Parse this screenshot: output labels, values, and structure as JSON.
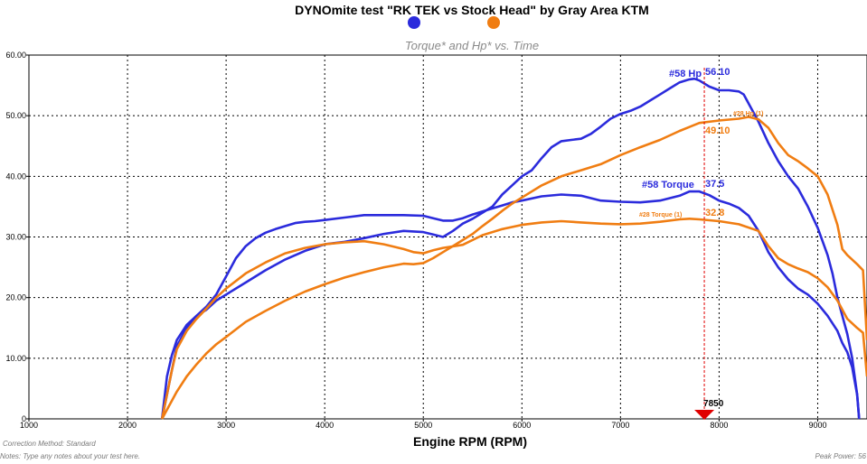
{
  "chart_data": {
    "type": "line",
    "title": "DYNOmite test \"RK TEK vs Stock Head\" by Gray Area KTM",
    "subtitle": "Torque* and Hp* vs. Time",
    "xlabel": "Engine RPM (RPM)",
    "ylabel": "",
    "xlim": [
      1000,
      9500
    ],
    "ylim": [
      0,
      60
    ],
    "x_ticks": [
      1000,
      2000,
      3000,
      4000,
      5000,
      6000,
      7000,
      8000,
      9000
    ],
    "y_ticks": [
      "0",
      "10.00",
      "20.00",
      "30.00",
      "40.00",
      "50.00",
      "60.00"
    ],
    "grid": true,
    "legend_colors": [
      "#2b2bdc",
      "#f07d12"
    ],
    "series": [
      {
        "name": "#58 Hp",
        "color": "#2b2bdc",
        "points": [
          [
            2350,
            0
          ],
          [
            2400,
            7
          ],
          [
            2450,
            10.5
          ],
          [
            2500,
            13
          ],
          [
            2600,
            15.5
          ],
          [
            2700,
            17
          ],
          [
            2800,
            18
          ],
          [
            2900,
            19.5
          ],
          [
            3000,
            20.5
          ],
          [
            3200,
            22.5
          ],
          [
            3400,
            24.5
          ],
          [
            3600,
            26.3
          ],
          [
            3800,
            27.7
          ],
          [
            4000,
            28.8
          ],
          [
            4200,
            29.2
          ],
          [
            4400,
            29.8
          ],
          [
            4600,
            30.5
          ],
          [
            4800,
            31
          ],
          [
            5000,
            30.8
          ],
          [
            5100,
            30.4
          ],
          [
            5200,
            30
          ],
          [
            5300,
            31
          ],
          [
            5400,
            32.2
          ],
          [
            5500,
            33
          ],
          [
            5600,
            34
          ],
          [
            5700,
            35
          ],
          [
            5800,
            37
          ],
          [
            5900,
            38.5
          ],
          [
            6000,
            40
          ],
          [
            6100,
            41
          ],
          [
            6200,
            43
          ],
          [
            6300,
            44.8
          ],
          [
            6400,
            45.8
          ],
          [
            6500,
            46
          ],
          [
            6600,
            46.2
          ],
          [
            6700,
            47
          ],
          [
            6800,
            48.2
          ],
          [
            6900,
            49.5
          ],
          [
            7000,
            50.3
          ],
          [
            7100,
            50.8
          ],
          [
            7200,
            51.5
          ],
          [
            7300,
            52.5
          ],
          [
            7400,
            53.5
          ],
          [
            7500,
            54.5
          ],
          [
            7600,
            55.5
          ],
          [
            7700,
            56
          ],
          [
            7750,
            56.1
          ],
          [
            7800,
            55.8
          ],
          [
            7900,
            54.8
          ],
          [
            8000,
            54.2
          ],
          [
            8100,
            54.2
          ],
          [
            8200,
            54
          ],
          [
            8250,
            53.5
          ],
          [
            8300,
            52
          ],
          [
            8400,
            49
          ],
          [
            8500,
            45.5
          ],
          [
            8600,
            42.5
          ],
          [
            8700,
            40
          ],
          [
            8800,
            38
          ],
          [
            8900,
            35
          ],
          [
            9000,
            31.5
          ],
          [
            9100,
            27
          ],
          [
            9150,
            24
          ],
          [
            9200,
            20
          ],
          [
            9250,
            17
          ],
          [
            9300,
            14
          ],
          [
            9350,
            10
          ],
          [
            9400,
            4
          ],
          [
            9420,
            0
          ]
        ]
      },
      {
        "name": "#58 Torque",
        "color": "#2b2bdc",
        "points": [
          [
            2350,
            0
          ],
          [
            2400,
            4
          ],
          [
            2450,
            8
          ],
          [
            2500,
            12
          ],
          [
            2600,
            15
          ],
          [
            2700,
            17
          ],
          [
            2800,
            18.5
          ],
          [
            2900,
            20.5
          ],
          [
            3000,
            23.5
          ],
          [
            3100,
            26.5
          ],
          [
            3200,
            28.5
          ],
          [
            3300,
            29.8
          ],
          [
            3400,
            30.7
          ],
          [
            3500,
            31.3
          ],
          [
            3600,
            31.8
          ],
          [
            3700,
            32.3
          ],
          [
            3800,
            32.5
          ],
          [
            3900,
            32.6
          ],
          [
            4000,
            32.8
          ],
          [
            4200,
            33.2
          ],
          [
            4400,
            33.6
          ],
          [
            4600,
            33.6
          ],
          [
            4800,
            33.6
          ],
          [
            5000,
            33.5
          ],
          [
            5100,
            33.1
          ],
          [
            5200,
            32.7
          ],
          [
            5300,
            32.7
          ],
          [
            5400,
            33.1
          ],
          [
            5500,
            33.7
          ],
          [
            5600,
            34.2
          ],
          [
            5700,
            34.7
          ],
          [
            5800,
            35.2
          ],
          [
            5900,
            35.7
          ],
          [
            6000,
            36
          ],
          [
            6200,
            36.7
          ],
          [
            6400,
            37
          ],
          [
            6600,
            36.8
          ],
          [
            6800,
            36
          ],
          [
            7000,
            35.8
          ],
          [
            7200,
            35.7
          ],
          [
            7400,
            36
          ],
          [
            7600,
            36.8
          ],
          [
            7700,
            37.5
          ],
          [
            7800,
            37.5
          ],
          [
            7900,
            36.9
          ],
          [
            8000,
            36
          ],
          [
            8100,
            35.5
          ],
          [
            8200,
            34.8
          ],
          [
            8300,
            33.5
          ],
          [
            8400,
            31
          ],
          [
            8500,
            27.5
          ],
          [
            8600,
            25
          ],
          [
            8700,
            23
          ],
          [
            8800,
            21.5
          ],
          [
            8900,
            20.5
          ],
          [
            9000,
            19
          ],
          [
            9100,
            17
          ],
          [
            9200,
            14.5
          ],
          [
            9250,
            12.5
          ],
          [
            9300,
            11
          ],
          [
            9350,
            8.5
          ],
          [
            9400,
            4
          ],
          [
            9420,
            0
          ]
        ]
      },
      {
        "name": "#28 Hp (1)",
        "color": "#f07d12",
        "points": [
          [
            2350,
            0
          ],
          [
            2400,
            1.5
          ],
          [
            2500,
            4.5
          ],
          [
            2600,
            7
          ],
          [
            2700,
            9
          ],
          [
            2800,
            10.8
          ],
          [
            2900,
            12.3
          ],
          [
            3000,
            13.5
          ],
          [
            3200,
            16
          ],
          [
            3400,
            17.8
          ],
          [
            3600,
            19.5
          ],
          [
            3800,
            21
          ],
          [
            4000,
            22.2
          ],
          [
            4200,
            23.3
          ],
          [
            4400,
            24.2
          ],
          [
            4600,
            25
          ],
          [
            4800,
            25.6
          ],
          [
            4900,
            25.5
          ],
          [
            5000,
            25.7
          ],
          [
            5100,
            26.5
          ],
          [
            5200,
            27.5
          ],
          [
            5300,
            28.5
          ],
          [
            5400,
            29.5
          ],
          [
            5500,
            30.5
          ],
          [
            5600,
            31.8
          ],
          [
            5700,
            33
          ],
          [
            5800,
            34.3
          ],
          [
            5900,
            35.5
          ],
          [
            6000,
            36.5
          ],
          [
            6200,
            38.5
          ],
          [
            6400,
            40
          ],
          [
            6600,
            41
          ],
          [
            6800,
            42
          ],
          [
            7000,
            43.5
          ],
          [
            7200,
            44.8
          ],
          [
            7400,
            46
          ],
          [
            7600,
            47.5
          ],
          [
            7800,
            48.8
          ],
          [
            8000,
            49.2
          ],
          [
            8200,
            49.5
          ],
          [
            8300,
            49.8
          ],
          [
            8400,
            49.4
          ],
          [
            8500,
            48
          ],
          [
            8600,
            45.5
          ],
          [
            8700,
            43.5
          ],
          [
            8800,
            42.5
          ],
          [
            8900,
            41.3
          ],
          [
            9000,
            40
          ],
          [
            9100,
            37
          ],
          [
            9200,
            32
          ],
          [
            9250,
            28
          ],
          [
            9300,
            27
          ],
          [
            9400,
            25.5
          ],
          [
            9460,
            24.5
          ],
          [
            9500,
            13
          ]
        ]
      },
      {
        "name": "#28 Torque (1)",
        "color": "#f07d12",
        "points": [
          [
            2350,
            0
          ],
          [
            2400,
            4
          ],
          [
            2450,
            8
          ],
          [
            2500,
            11.5
          ],
          [
            2600,
            14.5
          ],
          [
            2700,
            16.5
          ],
          [
            2800,
            18.2
          ],
          [
            2900,
            20
          ],
          [
            3000,
            21.5
          ],
          [
            3200,
            24
          ],
          [
            3400,
            25.8
          ],
          [
            3600,
            27.3
          ],
          [
            3800,
            28.2
          ],
          [
            4000,
            28.8
          ],
          [
            4200,
            29.1
          ],
          [
            4400,
            29.3
          ],
          [
            4600,
            28.8
          ],
          [
            4800,
            28
          ],
          [
            4900,
            27.5
          ],
          [
            5000,
            27.3
          ],
          [
            5100,
            27.8
          ],
          [
            5200,
            28.2
          ],
          [
            5400,
            28.7
          ],
          [
            5600,
            30.3
          ],
          [
            5800,
            31.3
          ],
          [
            6000,
            32
          ],
          [
            6200,
            32.4
          ],
          [
            6400,
            32.6
          ],
          [
            6600,
            32.4
          ],
          [
            6800,
            32.2
          ],
          [
            7000,
            32.1
          ],
          [
            7200,
            32.2
          ],
          [
            7400,
            32.5
          ],
          [
            7600,
            32.9
          ],
          [
            7700,
            33
          ],
          [
            7800,
            32.9
          ],
          [
            8000,
            32.6
          ],
          [
            8200,
            32.1
          ],
          [
            8400,
            31
          ],
          [
            8500,
            28.5
          ],
          [
            8600,
            26.5
          ],
          [
            8700,
            25.5
          ],
          [
            8800,
            24.8
          ],
          [
            8900,
            24.2
          ],
          [
            9000,
            23.2
          ],
          [
            9100,
            21.7
          ],
          [
            9200,
            19.5
          ],
          [
            9300,
            16.5
          ],
          [
            9400,
            15
          ],
          [
            9460,
            14.2
          ],
          [
            9500,
            7
          ]
        ]
      }
    ],
    "annotations": {
      "hp58_label": "#58 Hp",
      "hp58_value": "56.10",
      "hp28_label": "#28 Hp (1)",
      "hp28_value": "49.10",
      "tq58_label": "#58 Torque",
      "tq58_value": "37.5",
      "tq28_label": "#28 Torque (1)",
      "tq28_value": "32.8",
      "marker_rpm": 7850,
      "marker_label": "7850"
    }
  },
  "footer": {
    "correction": "Correction Method: Standard",
    "notes": "Notes: Type any notes about your test here.",
    "peak_power": "Peak Power: 56"
  }
}
